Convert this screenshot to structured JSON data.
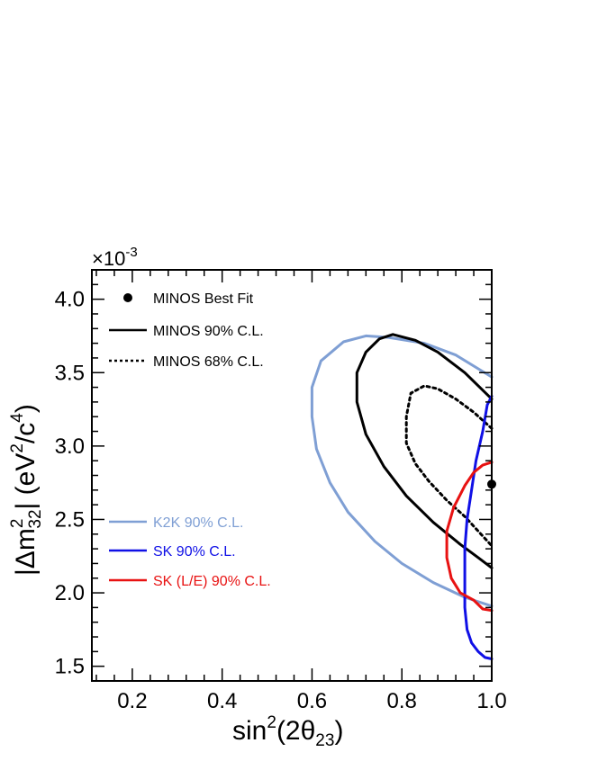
{
  "chart_data": {
    "type": "line",
    "x_axis": {
      "ticks": [
        0.2,
        0.4,
        0.6,
        0.8,
        1.0
      ],
      "tick_labels": [
        "0.2",
        "0.4",
        "0.6",
        "0.8",
        "1.0"
      ],
      "range": [
        0.11,
        1.0
      ],
      "title_base": "sin",
      "title_sup": "2",
      "title_mid": "(2θ",
      "title_sub": "23",
      "title_end": ")"
    },
    "y_axis": {
      "ticks": [
        1.5,
        2.0,
        2.5,
        3.0,
        3.5,
        4.0
      ],
      "tick_labels": [
        "1.5",
        "2.0",
        "2.5",
        "3.0",
        "3.5",
        "4.0"
      ],
      "range": [
        1.4,
        4.2
      ],
      "multiplier_base": "×10",
      "multiplier_exp": "-3",
      "title_a": "|Δm",
      "title_a_sup": "2",
      "title_a_sub": "32",
      "title_b": "| (eV",
      "title_b_sup": "2",
      "title_c": "/c",
      "title_c_sup": "4",
      "title_d": ")"
    },
    "best_fit": {
      "x": 1.0,
      "y": 2.74
    },
    "series": [
      {
        "name": "K2K 90% C.L.",
        "color": "#7f9fd4",
        "style": "solid",
        "points": [
          [
            1.0,
            3.47
          ],
          [
            0.92,
            3.62
          ],
          [
            0.85,
            3.7
          ],
          [
            0.77,
            3.74
          ],
          [
            0.72,
            3.75
          ],
          [
            0.67,
            3.71
          ],
          [
            0.62,
            3.58
          ],
          [
            0.6,
            3.4
          ],
          [
            0.6,
            3.2
          ],
          [
            0.61,
            2.98
          ],
          [
            0.64,
            2.75
          ],
          [
            0.68,
            2.55
          ],
          [
            0.74,
            2.35
          ],
          [
            0.8,
            2.2
          ],
          [
            0.87,
            2.07
          ],
          [
            0.94,
            1.97
          ],
          [
            1.0,
            1.91
          ]
        ]
      },
      {
        "name": "MINOS 90% C.L.",
        "color": "#000000",
        "style": "solid",
        "points": [
          [
            1.0,
            3.32
          ],
          [
            0.94,
            3.5
          ],
          [
            0.88,
            3.64
          ],
          [
            0.83,
            3.72
          ],
          [
            0.78,
            3.76
          ],
          [
            0.75,
            3.73
          ],
          [
            0.72,
            3.64
          ],
          [
            0.7,
            3.5
          ],
          [
            0.7,
            3.3
          ],
          [
            0.72,
            3.08
          ],
          [
            0.76,
            2.86
          ],
          [
            0.81,
            2.66
          ],
          [
            0.87,
            2.48
          ],
          [
            0.93,
            2.33
          ],
          [
            0.97,
            2.24
          ],
          [
            1.0,
            2.17
          ]
        ]
      },
      {
        "name": "MINOS 68% C.L.",
        "color": "#000000",
        "style": "dotted",
        "points": [
          [
            1.0,
            3.12
          ],
          [
            0.96,
            3.23
          ],
          [
            0.92,
            3.32
          ],
          [
            0.88,
            3.39
          ],
          [
            0.85,
            3.41
          ],
          [
            0.82,
            3.36
          ],
          [
            0.81,
            3.2
          ],
          [
            0.81,
            3.02
          ],
          [
            0.83,
            2.88
          ],
          [
            0.86,
            2.76
          ],
          [
            0.9,
            2.63
          ],
          [
            0.94,
            2.52
          ],
          [
            0.97,
            2.42
          ],
          [
            1.0,
            2.32
          ]
        ]
      },
      {
        "name": "SK 90% C.L.",
        "color": "#1010e6",
        "style": "solid",
        "points": [
          [
            1.0,
            3.34
          ],
          [
            0.99,
            3.28
          ],
          [
            0.98,
            3.1
          ],
          [
            0.965,
            2.9
          ],
          [
            0.955,
            2.7
          ],
          [
            0.945,
            2.5
          ],
          [
            0.94,
            2.3
          ],
          [
            0.94,
            2.1
          ],
          [
            0.94,
            1.9
          ],
          [
            0.945,
            1.75
          ],
          [
            0.955,
            1.66
          ],
          [
            0.97,
            1.6
          ],
          [
            0.985,
            1.56
          ],
          [
            1.0,
            1.55
          ]
        ]
      },
      {
        "name": "SK (L/E) 90% C.L.",
        "color": "#e81212",
        "style": "solid",
        "points": [
          [
            1.0,
            2.89
          ],
          [
            0.98,
            2.87
          ],
          [
            0.96,
            2.82
          ],
          [
            0.94,
            2.73
          ],
          [
            0.915,
            2.58
          ],
          [
            0.9,
            2.42
          ],
          [
            0.9,
            2.24
          ],
          [
            0.91,
            2.1
          ],
          [
            0.93,
            2.0
          ],
          [
            0.96,
            1.95
          ],
          [
            0.98,
            1.89
          ],
          [
            1.0,
            1.88
          ]
        ]
      }
    ],
    "legend": {
      "position": "left",
      "entries": [
        {
          "label": "MINOS Best Fit",
          "color": "#000000",
          "kind": "marker"
        },
        {
          "label": "MINOS 90% C.L.",
          "color": "#000000",
          "kind": "solid"
        },
        {
          "label": "MINOS 68% C.L.",
          "color": "#000000",
          "kind": "dotted"
        },
        {
          "label": "K2K 90% C.L.",
          "color": "#7f9fd4",
          "kind": "solid"
        },
        {
          "label": "SK 90% C.L.",
          "color": "#1010e6",
          "kind": "solid"
        },
        {
          "label": "SK (L/E) 90% C.L.",
          "color": "#e81212",
          "kind": "solid"
        }
      ]
    }
  }
}
